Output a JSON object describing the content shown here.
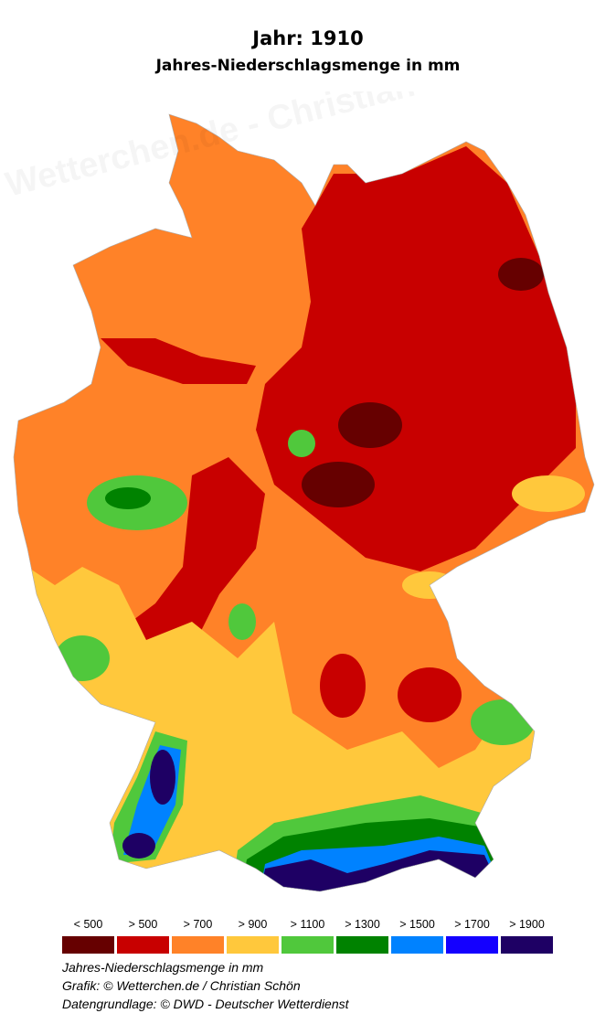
{
  "header": {
    "title": "Jahr: 1910",
    "subtitle": "Jahres-Niederschlagsmenge in mm"
  },
  "watermark": "Wetterchen.de - Christian Schön",
  "legend": [
    {
      "label": "< 500",
      "color": "#660000"
    },
    {
      "label": "> 500",
      "color": "#c80000"
    },
    {
      "label": "> 700",
      "color": "#ff8228"
    },
    {
      "label": "> 900",
      "color": "#ffc83c"
    },
    {
      "label": "> 1100",
      "color": "#50c83c"
    },
    {
      "label": "> 1300",
      "color": "#008200"
    },
    {
      "label": "> 1500",
      "color": "#0082ff"
    },
    {
      "label": "> 1700",
      "color": "#1400ff"
    },
    {
      "label": "> 1900",
      "color": "#1e0064"
    }
  ],
  "footer": {
    "line1": "Jahres-Niederschlagsmenge in mm",
    "line2": "Grafik: © Wetterchen.de / Christian Schön",
    "line3": "Datengrundlage: © DWD - Deutscher Wetterdienst"
  }
}
